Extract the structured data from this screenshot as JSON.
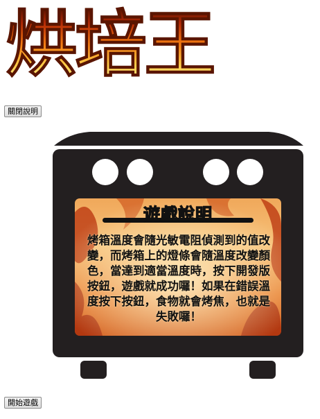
{
  "logo": {
    "title": "烘培王"
  },
  "controls": {
    "toggle_instructions_label": "關閉說明",
    "start_game_label": "開始遊戲"
  },
  "instructions": {
    "title": "遊戲說明",
    "body": "烤箱溫度會隨光敏電阻偵測到的值改變，而烤箱上的燈條會隨溫度改變顏色，當達到適當溫度時，按下開發版按鈕，遊戲就成功囉！如果在錯誤溫度按下按鈕，食物就會烤焦，也就是失敗囉！"
  },
  "oven": {
    "knob_icons": [
      "knob-icon",
      "knob-icon",
      "knob-icon",
      "knob-icon"
    ],
    "colors": {
      "body": "#231f20",
      "window_flame_dark": "#a8200a",
      "window_flame_light": "#ffd27a"
    }
  }
}
